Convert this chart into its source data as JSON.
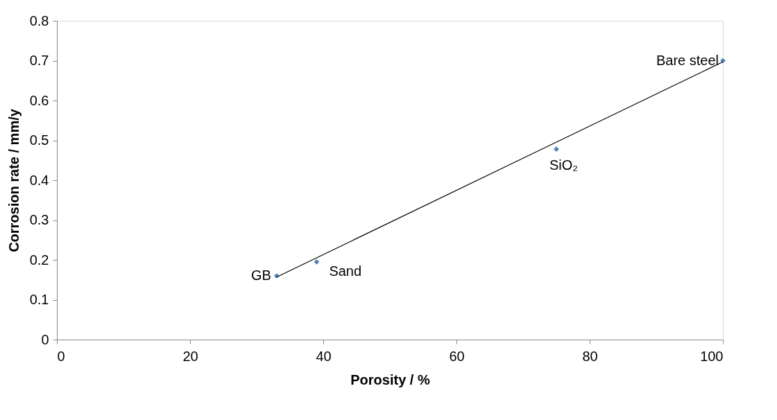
{
  "chart_data": {
    "type": "scatter",
    "xlabel": "Porosity / %",
    "ylabel": "Corrosion rate / mm/y",
    "x": [
      33,
      39,
      75,
      100
    ],
    "series": [
      {
        "color": "#4f81bd",
        "values": [
          0.16,
          0.195,
          0.478,
          0.7
        ],
        "marker": "diamond"
      },
      {
        "type": "line",
        "color": "#000000",
        "x": [
          33,
          100
        ],
        "values": [
          0.157,
          0.697
        ],
        "marker": "none",
        "line_style": "solid"
      }
    ],
    "annotations": [
      {
        "text": "GB",
        "x": 33,
        "y": 0.16
      },
      {
        "text": "Sand",
        "x": 39,
        "y": 0.195
      },
      {
        "text": "SiO₂",
        "x": 75,
        "y": 0.478
      },
      {
        "text": "Bare steel",
        "x": 100,
        "y": 0.7
      }
    ],
    "xlim": [
      0,
      100
    ],
    "xticks": [
      0,
      20,
      40,
      60,
      80,
      100
    ],
    "ylim": [
      0,
      0.8
    ],
    "yticks": [
      0,
      0.1,
      0.2,
      0.3,
      0.4,
      0.5,
      0.6,
      0.7,
      0.8
    ],
    "grid": false
  }
}
